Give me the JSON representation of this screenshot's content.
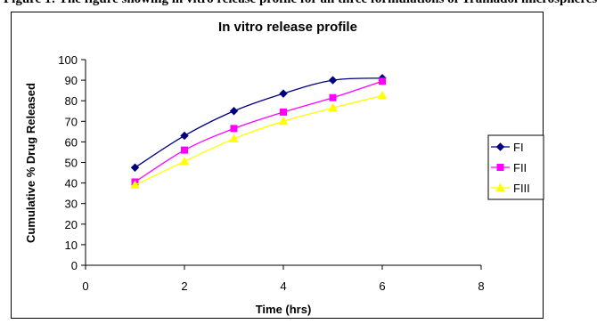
{
  "clipped_caption": "Figure 1: The figure showing in vitro release profile for all three formulations of Tramadol microspheres",
  "chart_data": {
    "type": "line",
    "title": "In vitro release profile",
    "xlabel": "Time (hrs)",
    "ylabel": "Cumulative % Drug Released",
    "xlim": [
      0,
      8
    ],
    "ylim": [
      0,
      100
    ],
    "x_ticks": [
      "0",
      "2",
      "4",
      "6",
      "8"
    ],
    "y_ticks": [
      "0",
      "10",
      "20",
      "30",
      "40",
      "50",
      "60",
      "70",
      "80",
      "90",
      "100"
    ],
    "grid": false,
    "legend_position": "right",
    "x": [
      1,
      2,
      3,
      4,
      5,
      6
    ],
    "series": [
      {
        "name": "FI",
        "values": [
          47.5,
          63,
          75,
          83.5,
          90,
          91
        ],
        "color": "#000080",
        "marker": "diamond"
      },
      {
        "name": "FII",
        "values": [
          40.5,
          56,
          66.5,
          74.5,
          81.5,
          89.5
        ],
        "color": "#FF00FF",
        "marker": "square"
      },
      {
        "name": "FIII",
        "values": [
          39,
          50.5,
          61.5,
          70,
          76.5,
          82.5
        ],
        "color": "#FFFF00",
        "marker": "triangle"
      }
    ]
  }
}
